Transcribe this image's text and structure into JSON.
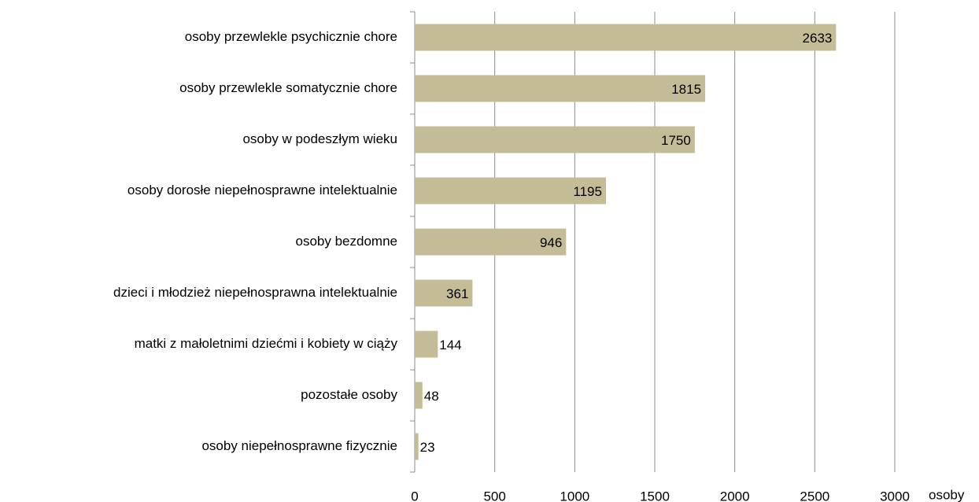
{
  "chart_data": {
    "type": "hbar",
    "categories": [
      "osoby przewlekle psychicznie chore",
      "osoby przewlekle somatycznie chore",
      "osoby w podeszłym wieku",
      "osoby dorosłe niepełnosprawne intelektualnie",
      "osoby bezdomne",
      "dzieci i młodzież niepełnosprawna intelektualnie",
      "matki z małoletnimi dziećmi i kobiety w ciąży",
      "pozostałe osoby",
      "osoby niepełnosprawne fizycznie"
    ],
    "values": [
      2633,
      1815,
      1750,
      1195,
      946,
      361,
      144,
      48,
      23
    ],
    "color": "#c4bc96",
    "x_label": "osoby",
    "xlim": [
      0,
      3000
    ],
    "xticks": [
      0,
      500,
      1000,
      1500,
      2000,
      2500,
      3000
    ],
    "grid": true
  }
}
